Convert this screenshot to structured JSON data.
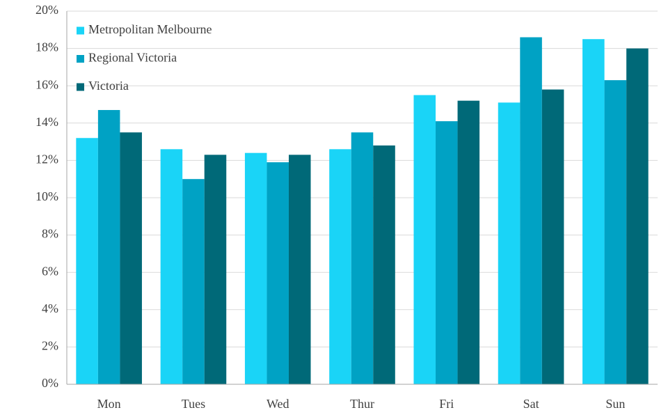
{
  "chart_data": {
    "type": "bar",
    "categories": [
      "Mon",
      "Tues",
      "Wed",
      "Thur",
      "Fri",
      "Sat",
      "Sun"
    ],
    "series": [
      {
        "name": "Metropolitan Melbourne",
        "color": "#1ad4f7",
        "values": [
          13.2,
          12.6,
          12.4,
          12.6,
          15.5,
          15.1,
          18.5
        ]
      },
      {
        "name": "Regional Victoria",
        "color": "#00a2c4",
        "values": [
          14.7,
          11.0,
          11.9,
          13.5,
          14.1,
          18.6,
          16.3
        ]
      },
      {
        "name": "Victoria",
        "color": "#006978",
        "values": [
          13.5,
          12.3,
          12.3,
          12.8,
          15.2,
          15.8,
          18.0
        ]
      }
    ],
    "ylim": [
      0,
      20
    ],
    "yticks": [
      {
        "value": 0,
        "label": "0%"
      },
      {
        "value": 2,
        "label": "2%"
      },
      {
        "value": 4,
        "label": "4%"
      },
      {
        "value": 6,
        "label": "6%"
      },
      {
        "value": 8,
        "label": "8%"
      },
      {
        "value": 10,
        "label": "10%"
      },
      {
        "value": 12,
        "label": "12%"
      },
      {
        "value": 14,
        "label": "14%"
      },
      {
        "value": 16,
        "label": "16%"
      },
      {
        "value": 18,
        "label": "18%"
      },
      {
        "value": 20,
        "label": "20%"
      }
    ],
    "grid": true,
    "legend": "top-left"
  }
}
